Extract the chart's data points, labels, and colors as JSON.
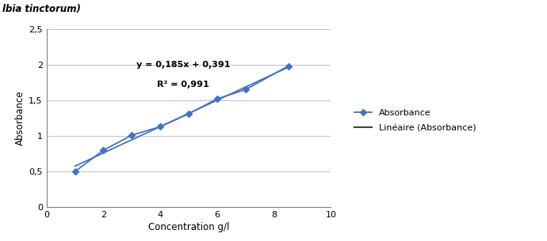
{
  "x_data": [
    1,
    2,
    3,
    4,
    5,
    6,
    7,
    8.5
  ],
  "y_data": [
    0.5,
    0.8,
    1.01,
    1.13,
    1.31,
    1.52,
    1.65,
    1.98
  ],
  "slope": 0.185,
  "intercept": 0.391,
  "r_squared": 0.991,
  "xlabel": "Concentration g/l",
  "ylabel": "Absorbance",
  "xlim": [
    0,
    10
  ],
  "ylim": [
    0,
    2.5
  ],
  "xticks": [
    0,
    2,
    4,
    6,
    8,
    10
  ],
  "yticks": [
    0,
    0.5,
    1.0,
    1.5,
    2.0,
    2.5
  ],
  "ytick_labels": [
    "0",
    "0,5",
    "1",
    "1,5",
    "2",
    "2,5"
  ],
  "data_color": "#4472C4",
  "line_color": "#4472C4",
  "grid_color": "#C0C0C0",
  "equation_text": "y = 0,185x + 0,391",
  "r2_text": "R² = 0,991",
  "legend_data_label": "Absorbance",
  "legend_line_label": "Linéaire (Absorbance)",
  "header_text": "lbia tinctorum)",
  "header_bg": "#A0A0A0",
  "header_text_color": "#000000"
}
